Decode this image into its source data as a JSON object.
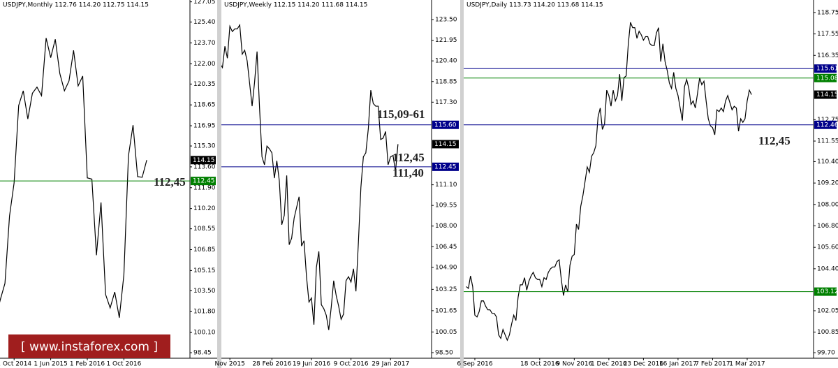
{
  "chart_data": [
    {
      "type": "line",
      "title": "USDJPY,Monthly  112.76 114.20 112.75 114.15",
      "categories": [
        null,
        null,
        null,
        null,
        "1 Oct 2014",
        null,
        null,
        null,
        null,
        null,
        null,
        null,
        "1 Jun 2015",
        null,
        null,
        null,
        null,
        null,
        null,
        null,
        "1 Feb 2016",
        null,
        null,
        null,
        null,
        null,
        null,
        null,
        "1 Oct 2016",
        null,
        null,
        null,
        null,
        null
      ],
      "series": [
        {
          "color": "#000000",
          "values": [
            101.3,
            102.8,
            104.1,
            109.6,
            112.3,
            118.6,
            119.8,
            117.5,
            119.6,
            120.1,
            119.4,
            124.1,
            122.5,
            124.0,
            121.2,
            119.8,
            120.6,
            123.1,
            120.2,
            121.0,
            112.7,
            112.6,
            106.4,
            110.7,
            103.2,
            102.1,
            103.4,
            101.3,
            104.8,
            114.5,
            117.0,
            112.8,
            112.75,
            114.15
          ]
        }
      ],
      "ylim": [
        98.0,
        127.2
      ],
      "yticks": [
        127.05,
        {
          "value": 125.4,
          "label": "125.40"
        },
        {
          "value": 123.7,
          "label": "123.70"
        },
        {
          "value": 122,
          "label": "122.00"
        },
        120.35,
        118.65,
        116.95,
        {
          "value": 115.3,
          "label": "115.30"
        },
        {
          "value": 113.6,
          "label": "113.60"
        },
        {
          "value": 111.9,
          "label": "111.90"
        },
        {
          "value": 110.2,
          "label": "110.20"
        },
        108.55,
        106.85,
        105.15,
        {
          "value": 103.5,
          "label": "103.50"
        },
        {
          "value": 101.8,
          "label": "101.80"
        },
        {
          "value": 100.1,
          "label": "100.10"
        },
        98.45
      ],
      "levels": [
        {
          "value": 112.45,
          "color": "#008000"
        }
      ],
      "price": {
        "value": 114.15
      },
      "annotations": [
        "112,45"
      ]
    },
    {
      "type": "line",
      "title": "USDJPY,Weekly  112.15 114.20 111.68 114.15",
      "categories": [
        null,
        null,
        null,
        null,
        "Nov 2015",
        null,
        null,
        null,
        null,
        null,
        null,
        null,
        null,
        null,
        null,
        null,
        null,
        null,
        null,
        null,
        null,
        "28 Feb 2016",
        null,
        null,
        null,
        null,
        null,
        null,
        null,
        null,
        null,
        null,
        null,
        null,
        null,
        null,
        null,
        "19 Jun 2016",
        null,
        null,
        null,
        null,
        null,
        null,
        null,
        null,
        null,
        null,
        null,
        null,
        null,
        null,
        null,
        "9 Oct 2016",
        null,
        null,
        null,
        null,
        null,
        null,
        null,
        null,
        null,
        null,
        null,
        null,
        null,
        null,
        null,
        "29 Jan 2017",
        null,
        null,
        null
      ],
      "series": [
        {
          "color": "#000000",
          "values": [
            120.2,
            119.9,
            121.5,
            120.6,
            123.0,
            122.6,
            122.8,
            122.8,
            123.1,
            120.9,
            121.2,
            120.4,
            118.7,
            117.0,
            118.8,
            121.1,
            116.9,
            113.2,
            112.6,
            114.0,
            113.8,
            113.5,
            111.6,
            112.9,
            111.4,
            108.1,
            108.8,
            111.8,
            106.6,
            107.1,
            108.6,
            109.4,
            110.2,
            106.5,
            106.9,
            104.2,
            102.3,
            102.6,
            100.6,
            104.9,
            106.1,
            102.1,
            101.8,
            101.3,
            100.2,
            101.9,
            103.9,
            102.8,
            102.0,
            101.0,
            101.4,
            103.9,
            104.2,
            103.8,
            104.8,
            103.1,
            106.8,
            110.9,
            113.2,
            113.5,
            115.3,
            118.2,
            117.2,
            117.0,
            117.0,
            114.5,
            114.6,
            115.1,
            112.6,
            113.2,
            113.3,
            112.1,
            114.15
          ]
        }
      ],
      "ylim": [
        98.08,
        124.97
      ],
      "yticks": [
        {
          "value": 123.5,
          "label": "123.50"
        },
        121.95,
        {
          "value": 120.4,
          "label": "120.40"
        },
        118.85,
        {
          "value": 117.3,
          "label": "117.30"
        },
        {
          "value": 111.1,
          "label": "111.10"
        },
        109.55,
        {
          "value": 108,
          "label": "108.00"
        },
        106.45,
        {
          "value": 104.9,
          "label": "104.90"
        },
        103.25,
        101.65,
        100.05,
        {
          "value": 98.5,
          "label": "98.50"
        }
      ],
      "levels": [
        {
          "value": 115.6,
          "label": "115.60",
          "color": "#00008b"
        },
        {
          "value": 112.45,
          "color": "#00008b"
        }
      ],
      "price": {
        "value": 114.15
      },
      "annotations": [
        "115,09-61",
        "112,45",
        "111,40"
      ]
    },
    {
      "type": "line",
      "title": "USDJPY,Daily  113.73 114.20 113.68 114.15",
      "categories": [
        null,
        null,
        null,
        null,
        "6 Sep 2016",
        null,
        null,
        null,
        null,
        null,
        null,
        null,
        null,
        null,
        null,
        null,
        null,
        null,
        null,
        null,
        null,
        null,
        null,
        null,
        null,
        null,
        null,
        null,
        null,
        null,
        null,
        null,
        null,
        null,
        "18 Oct 2016",
        null,
        null,
        null,
        null,
        null,
        null,
        null,
        null,
        null,
        null,
        null,
        null,
        null,
        null,
        null,
        "9 Nov 2016",
        null,
        null,
        null,
        null,
        null,
        null,
        null,
        null,
        null,
        null,
        null,
        null,
        null,
        null,
        null,
        "1 Dec 2016",
        null,
        null,
        null,
        null,
        null,
        null,
        null,
        null,
        null,
        null,
        null,
        null,
        null,
        null,
        null,
        "23 Dec 2016",
        null,
        null,
        null,
        null,
        null,
        null,
        null,
        null,
        null,
        null,
        null,
        null,
        null,
        null,
        null,
        "16 Jan 2017",
        null,
        null,
        null,
        null,
        null,
        null,
        null,
        null,
        null,
        null,
        null,
        null,
        null,
        null,
        null,
        "7 Feb 2017",
        null,
        null,
        null,
        null,
        null,
        null,
        null,
        null,
        null,
        null,
        null,
        null,
        null,
        null,
        null,
        "1 Mar 2017",
        null,
        null
      ],
      "series": [
        {
          "color": "#000000",
          "values": [
            103.4,
            103.3,
            104.0,
            103.4,
            101.8,
            101.7,
            102.0,
            102.6,
            102.6,
            102.3,
            102.1,
            102.1,
            101.9,
            101.9,
            101.7,
            100.7,
            100.5,
            101.0,
            100.7,
            100.4,
            100.7,
            101.3,
            101.8,
            101.5,
            102.8,
            103.5,
            103.5,
            103.9,
            103.2,
            103.7,
            104.0,
            104.2,
            103.9,
            103.8,
            103.8,
            103.4,
            103.9,
            103.8,
            104.2,
            104.4,
            104.5,
            104.5,
            104.8,
            104.9,
            103.8,
            102.9,
            103.5,
            103.1,
            104.6,
            105.1,
            105.2,
            106.9,
            106.6,
            107.9,
            108.5,
            109.3,
            110.1,
            109.8,
            110.7,
            110.9,
            111.3,
            112.9,
            113.4,
            112.2,
            112.5,
            114.4,
            114.1,
            113.5,
            114.4,
            113.8,
            114.1,
            115.3,
            113.8,
            115.1,
            115.2,
            117.0,
            118.2,
            117.9,
            117.9,
            117.3,
            117.7,
            117.5,
            117.2,
            117.4,
            117.4,
            117.0,
            116.9,
            116.9,
            117.6,
            117.9,
            116.0,
            117.0,
            116.0,
            115.5,
            114.8,
            114.5,
            115.4,
            114.5,
            114.1,
            113.4,
            112.7,
            114.6,
            115.0,
            114.5,
            113.6,
            113.8,
            113.4,
            114.2,
            115.1,
            114.7,
            114.9,
            113.8,
            112.8,
            112.4,
            112.3,
            111.9,
            113.3,
            113.2,
            113.4,
            113.2,
            113.8,
            114.1,
            113.7,
            113.3,
            113.5,
            113.4,
            112.1,
            112.8,
            112.6,
            112.8,
            113.8,
            114.4,
            114.15
          ]
        }
      ],
      "ylim": [
        99.39,
        119.45
      ],
      "yticks": [
        118.75,
        117.55,
        116.35,
        112.75,
        111.55,
        {
          "value": 110.4,
          "label": "110.40"
        },
        {
          "value": 109.2,
          "label": "109.20"
        },
        {
          "value": 108,
          "label": "108.00"
        },
        {
          "value": 106.8,
          "label": "106.80"
        },
        {
          "value": 105.6,
          "label": "105.60"
        },
        {
          "value": 104.4,
          "label": "104.40"
        },
        102.05,
        100.85,
        {
          "value": 99.7,
          "label": "99.70"
        }
      ],
      "levels": [
        {
          "value": 115.61,
          "color": "#00008b"
        },
        {
          "value": 115.08,
          "color": "#008000"
        },
        {
          "value": 112.46,
          "color": "#00008b"
        },
        {
          "value": 103.12,
          "color": "#008000"
        }
      ],
      "price": {
        "value": 114.15
      },
      "annotations": [
        "112,45"
      ]
    }
  ],
  "watermark": "[  www.instaforex.com ]"
}
